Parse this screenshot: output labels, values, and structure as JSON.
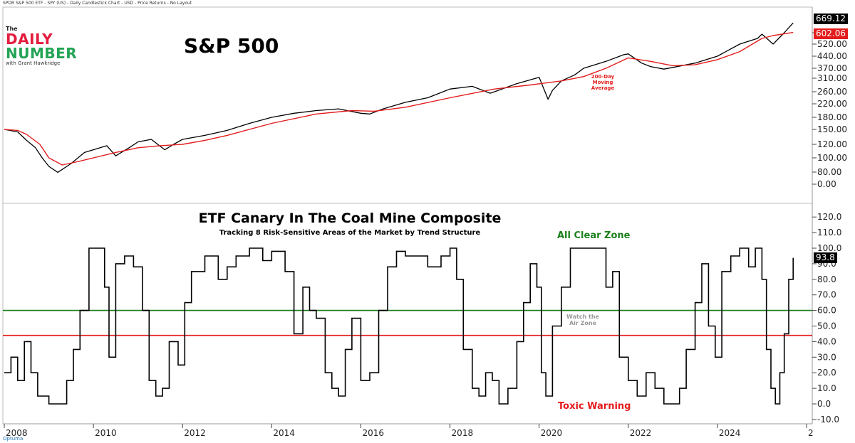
{
  "header": {
    "text": "SPDR S&P 500 ETF - SPY (US) - Daily Candlestick Chart - USD - Price Returns - No Layout"
  },
  "logo": {
    "the": "The",
    "daily": "DAILY",
    "number": "NUMBER",
    "with": "with Grant Hawkridge"
  },
  "watermark": "Optuma",
  "colors": {
    "price": "#000000",
    "moving_average": "#e31c1c",
    "all_clear_line": "#1a7f1a",
    "toxic_line": "#e31c1c",
    "logo_red": "#e31c3d",
    "logo_green": "#23a455"
  },
  "chart_data": [
    {
      "type": "line",
      "title": "S&P 500",
      "x_range": [
        2008.0,
        2026.0
      ],
      "y_axis": {
        "ticks": [
          "0.00",
          "80.00",
          "100.00",
          "120.00",
          "150.00",
          "180.00",
          "220.00",
          "260.00",
          "310.00",
          "370.00",
          "440.00",
          "520.00",
          "600.00"
        ],
        "scale": "custom-nonlinear"
      },
      "last_close": "669.12",
      "ma_value": "602.06",
      "annotation": "200-Day Moving Average",
      "series": [
        {
          "name": "",
          "kind": "price",
          "x": [
            2008.0,
            2008.3,
            2008.5,
            2008.7,
            2008.85,
            2009.0,
            2009.2,
            2009.5,
            2009.8,
            2010.0,
            2010.3,
            2010.5,
            2010.8,
            2011.0,
            2011.3,
            2011.6,
            2011.8,
            2012.0,
            2012.5,
            2013.0,
            2013.5,
            2014.0,
            2014.5,
            2015.0,
            2015.5,
            2016.0,
            2016.2,
            2016.5,
            2017.0,
            2017.5,
            2018.0,
            2018.5,
            2018.9,
            2019.0,
            2019.5,
            2020.0,
            2020.2,
            2020.3,
            2020.5,
            2020.8,
            2021.0,
            2021.5,
            2021.9,
            2022.0,
            2022.3,
            2022.5,
            2022.8,
            2023.0,
            2023.5,
            2024.0,
            2024.5,
            2024.9,
            2025.0,
            2025.25,
            2025.5,
            2025.7
          ],
          "y": [
            150,
            145,
            128,
            115,
            100,
            88,
            78,
            92,
            108,
            112,
            118,
            103,
            115,
            125,
            130,
            112,
            120,
            130,
            138,
            148,
            165,
            180,
            192,
            200,
            205,
            192,
            190,
            205,
            225,
            240,
            270,
            280,
            255,
            260,
            290,
            315,
            235,
            265,
            300,
            330,
            370,
            410,
            450,
            455,
            400,
            380,
            365,
            375,
            400,
            440,
            520,
            560,
            590,
            520,
            600,
            669.12
          ]
        },
        {
          "name": "",
          "kind": "moving-average",
          "x": [
            2008.0,
            2008.3,
            2008.5,
            2008.8,
            2009.0,
            2009.3,
            2009.6,
            2010.0,
            2010.5,
            2011.0,
            2011.5,
            2012.0,
            2012.5,
            2013.0,
            2014.0,
            2015.0,
            2015.8,
            2016.3,
            2017.0,
            2018.0,
            2019.0,
            2019.8,
            2020.5,
            2021.0,
            2021.5,
            2022.0,
            2022.5,
            2023.0,
            2023.5,
            2024.0,
            2024.5,
            2025.0,
            2025.25,
            2025.7
          ],
          "y": [
            150,
            148,
            140,
            120,
            100,
            90,
            94,
            100,
            108,
            115,
            118,
            120,
            128,
            138,
            165,
            190,
            200,
            198,
            210,
            240,
            270,
            285,
            300,
            320,
            370,
            430,
            410,
            385,
            390,
            420,
            470,
            560,
            580,
            602.06
          ]
        }
      ]
    },
    {
      "type": "line",
      "title": "ETF Canary In The Coal Mine Composite",
      "subtitle": "Tracking 8 Risk-Sensitive Areas of the Market by Trend Structure",
      "x_range": [
        2008.0,
        2026.0
      ],
      "xticks": [
        "2008",
        "2010",
        "2012",
        "2014",
        "2016",
        "2018",
        "2020",
        "2022",
        "2024",
        "2"
      ],
      "ylim": [
        -10,
        120
      ],
      "yticks": [
        "-10.0",
        "0.0",
        "10.0",
        "20.0",
        "30.0",
        "40.0",
        "50.0",
        "60.0",
        "70.0",
        "80.0",
        "90.0",
        "100.0",
        "110.0",
        "120.0"
      ],
      "last_value": "93.8",
      "zones": {
        "all_clear_label": "All Clear Zone",
        "watch_label": "Watch the Air Zone",
        "toxic_label": "Toxic Warning",
        "all_clear_level": 60,
        "toxic_level": 44
      },
      "series": [
        {
          "name": "",
          "x": [
            2008.0,
            2008.15,
            2008.3,
            2008.45,
            2008.6,
            2008.75,
            2009.0,
            2009.2,
            2009.4,
            2009.55,
            2009.7,
            2009.9,
            2010.15,
            2010.25,
            2010.35,
            2010.5,
            2010.7,
            2010.9,
            2011.1,
            2011.25,
            2011.4,
            2011.55,
            2011.7,
            2011.9,
            2012.05,
            2012.2,
            2012.5,
            2012.8,
            2013.0,
            2013.2,
            2013.5,
            2013.8,
            2014.0,
            2014.3,
            2014.5,
            2014.7,
            2014.85,
            2015.0,
            2015.2,
            2015.35,
            2015.5,
            2015.65,
            2015.8,
            2016.0,
            2016.2,
            2016.4,
            2016.6,
            2016.8,
            2017.0,
            2017.5,
            2017.8,
            2018.0,
            2018.15,
            2018.3,
            2018.5,
            2018.65,
            2018.8,
            2018.95,
            2019.1,
            2019.3,
            2019.5,
            2019.65,
            2019.8,
            2019.95,
            2020.05,
            2020.15,
            2020.3,
            2020.5,
            2020.7,
            2021.0,
            2021.3,
            2021.5,
            2021.65,
            2021.8,
            2022.0,
            2022.2,
            2022.4,
            2022.6,
            2022.8,
            2023.0,
            2023.15,
            2023.3,
            2023.5,
            2023.65,
            2023.8,
            2023.95,
            2024.1,
            2024.3,
            2024.5,
            2024.7,
            2024.85,
            2025.0,
            2025.1,
            2025.2,
            2025.3,
            2025.4,
            2025.5,
            2025.6,
            2025.7
          ],
          "y": [
            20,
            30,
            15,
            40,
            20,
            5,
            0,
            0,
            15,
            35,
            60,
            100,
            100,
            75,
            30,
            90,
            95,
            88,
            60,
            15,
            5,
            10,
            40,
            25,
            65,
            85,
            95,
            80,
            88,
            95,
            100,
            92,
            98,
            85,
            45,
            75,
            60,
            55,
            20,
            10,
            5,
            35,
            55,
            15,
            20,
            60,
            88,
            98,
            95,
            88,
            95,
            100,
            80,
            35,
            10,
            5,
            20,
            15,
            0,
            10,
            40,
            65,
            90,
            75,
            20,
            5,
            50,
            75,
            100,
            100,
            100,
            75,
            85,
            30,
            15,
            5,
            20,
            10,
            0,
            0,
            10,
            35,
            65,
            90,
            50,
            30,
            85,
            95,
            100,
            88,
            100,
            80,
            35,
            10,
            0,
            20,
            45,
            80,
            93.8
          ]
        }
      ]
    }
  ]
}
